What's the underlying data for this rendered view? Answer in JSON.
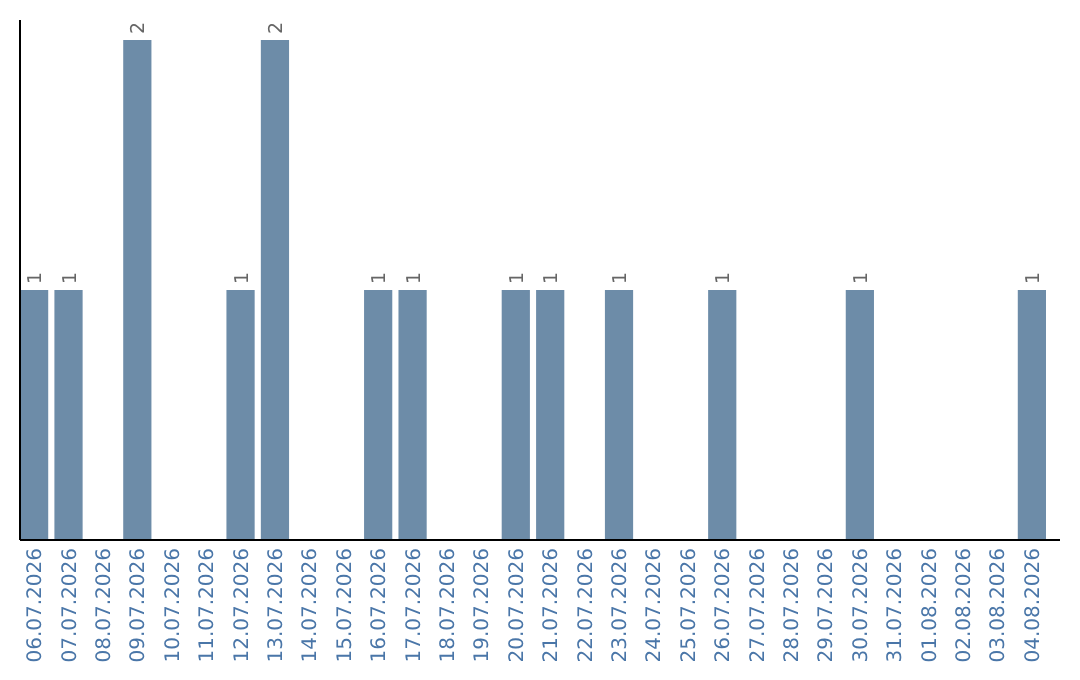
{
  "chart_data": {
    "type": "bar",
    "relative": false,
    "categories": [
      "06.07.2026",
      "07.07.2026",
      "08.07.2026",
      "09.07.2026",
      "10.07.2026",
      "11.07.2026",
      "12.07.2026",
      "13.07.2026",
      "14.07.2026",
      "15.07.2026",
      "16.07.2026",
      "17.07.2026",
      "18.07.2026",
      "19.07.2026",
      "20.07.2026",
      "21.07.2026",
      "22.07.2026",
      "23.07.2026",
      "24.07.2026",
      "25.07.2026",
      "26.07.2026",
      "27.07.2026",
      "28.07.2026",
      "29.07.2026",
      "30.07.2026",
      "31.07.2026",
      "01.08.2026",
      "02.08.2026",
      "03.08.2026",
      "04.08.2026"
    ],
    "values": [
      1,
      1,
      0,
      2,
      0,
      0,
      1,
      2,
      0,
      0,
      1,
      1,
      0,
      0,
      1,
      1,
      0,
      1,
      0,
      0,
      1,
      0,
      0,
      0,
      1,
      0,
      0,
      0,
      0,
      1
    ],
    "value_labels": [
      "1",
      "1",
      null,
      "2",
      null,
      null,
      "1",
      "2",
      null,
      null,
      "1",
      "1",
      null,
      null,
      "1",
      "1",
      null,
      "1",
      null,
      null,
      "1",
      null,
      null,
      null,
      "1",
      null,
      null,
      null,
      null,
      "1"
    ],
    "color": "#6d8ca8"
  }
}
